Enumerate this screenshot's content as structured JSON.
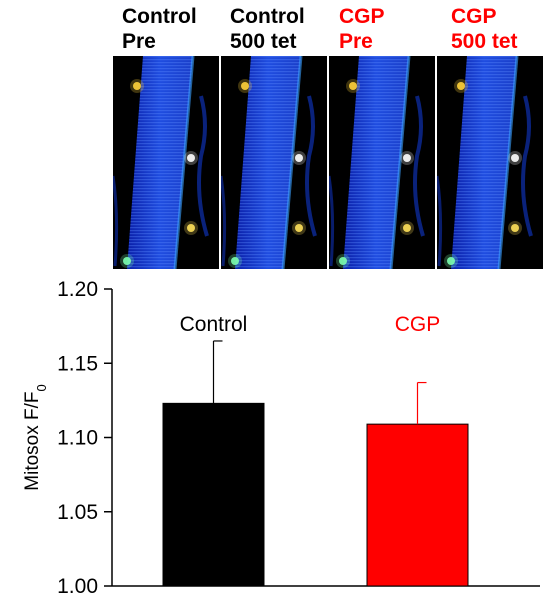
{
  "panels": [
    {
      "line1": "Control",
      "line2": "Pre",
      "color": "#000000"
    },
    {
      "line1": "Control",
      "line2": "500 tet",
      "color": "#000000"
    },
    {
      "line1": "CGP",
      "line2": "Pre",
      "color": "#ff0000"
    },
    {
      "line1": "CGP",
      "line2": "500 tet",
      "color": "#ff0000"
    }
  ],
  "chart_data": {
    "type": "bar",
    "categories": [
      "Control",
      "CGP"
    ],
    "values": [
      1.123,
      1.109
    ],
    "errors": [
      0.042,
      0.028
    ],
    "colors": [
      "#000000",
      "#ff0000"
    ],
    "label_colors": [
      "#000000",
      "#ff0000"
    ],
    "ylabel_main": "Mitosox F/F",
    "ylabel_sub": "0",
    "ylim": [
      1.0,
      1.2
    ],
    "yticks": [
      "1.00",
      "1.05",
      "1.10",
      "1.15",
      "1.20"
    ],
    "grid": false
  }
}
